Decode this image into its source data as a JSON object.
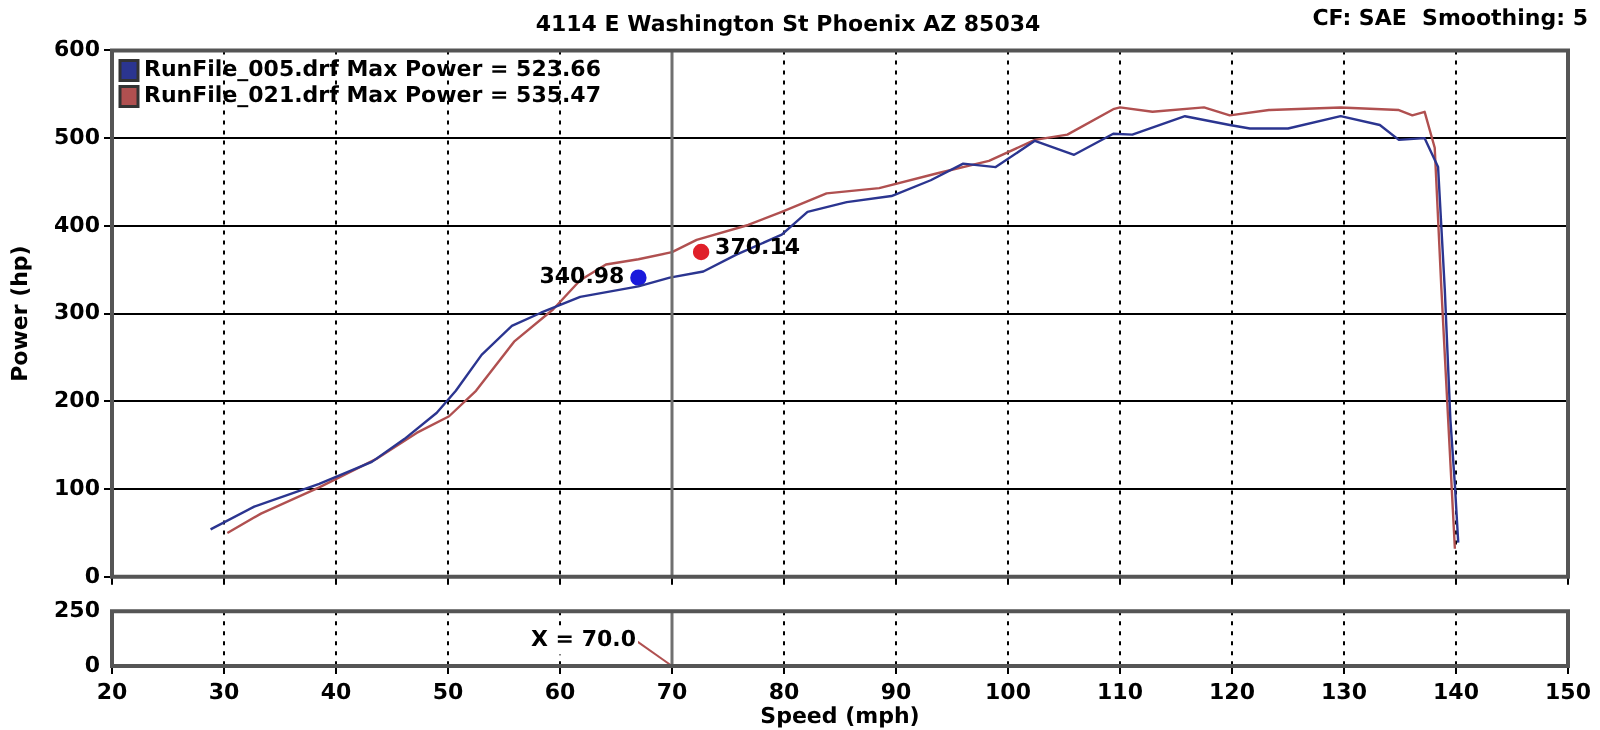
{
  "chart_data": [
    {
      "type": "line",
      "title": "4114 E Washington St Phoenix AZ 85034",
      "ylabel": "Power (hp)",
      "xlim": [
        20,
        150
      ],
      "xticks": [
        20,
        30,
        40,
        50,
        60,
        70,
        80,
        90,
        100,
        110,
        120,
        130,
        140,
        150
      ],
      "ylim": [
        0,
        600
      ],
      "yticks": [
        0,
        100,
        200,
        300,
        400,
        500,
        600
      ],
      "grid": true,
      "legend": "top left",
      "tick_labels": "y",
      "line_style": "solid",
      "annotations": [
        "CF: SAE  Smoothing: 5"
      ],
      "ref_lines": [
        {
          "axis": "x",
          "value": 70,
          "color": "#707070"
        }
      ],
      "series": [
        {
          "name": "RunFile_005.drf Max Power = 523.66",
          "color": "#2b3590",
          "x": [
            28.8,
            32.7,
            38.5,
            43.2,
            46.1,
            49,
            50.7,
            53,
            55.7,
            58.3,
            61.8,
            67,
            69.8,
            72.8,
            75.7,
            79.8,
            82.1,
            85.6,
            89.6,
            93.1,
            96,
            98.9,
            102.4,
            105.9,
            109.4,
            111.1,
            115.8,
            119.8,
            121.6,
            125,
            129.7,
            133.2,
            134.9,
            137.2,
            138.4,
            139,
            139.5,
            139.9,
            140.2
          ],
          "values": [
            54,
            80,
            106,
            131,
            157,
            187,
            212,
            253,
            286,
            301,
            319,
            331,
            341,
            348,
            367,
            390,
            416,
            427,
            434,
            452,
            471,
            467,
            497,
            481,
            505,
            504,
            525,
            515,
            511,
            511,
            525,
            515,
            498,
            500,
            467,
            327,
            179,
            105,
            39
          ]
        },
        {
          "name": "RunFile_021.drf Max Power = 535.47",
          "color": "#b05050",
          "x": [
            30.3,
            33.3,
            38.5,
            43.7,
            47.2,
            50.1,
            52.5,
            55.9,
            59.4,
            61.8,
            64.1,
            67,
            70,
            72.2,
            76.8,
            79.8,
            83.8,
            88.5,
            93.7,
            98.3,
            102.4,
            105.3,
            109.4,
            110,
            112.9,
            117.5,
            119.8,
            123.3,
            129.7,
            134.9,
            136.1,
            137.2,
            138.1,
            138.7,
            139.3,
            139.9
          ],
          "values": [
            50,
            72,
            102,
            135,
            164,
            183,
            212,
            268,
            305,
            338,
            356,
            362,
            370,
            384,
            401,
            416,
            437,
            443,
            460,
            474,
            498,
            504,
            533,
            535,
            530,
            535,
            526,
            532,
            535,
            532,
            526,
            530,
            489,
            327,
            179,
            32
          ]
        },
        {
          "type": "scatter",
          "marker": "circle",
          "color": "#1a1adc",
          "x": [
            67
          ],
          "values": [
            340.98
          ],
          "value_labels": [
            "340.98"
          ]
        },
        {
          "type": "scatter",
          "marker": "circle",
          "color": "#e0202a",
          "x": [
            72.6
          ],
          "values": [
            370.14
          ],
          "value_labels": [
            "370.14"
          ]
        }
      ]
    },
    {
      "type": "line",
      "xlabel": "Speed (mph)",
      "xlim": [
        20,
        150
      ],
      "xticks": [
        20,
        30,
        40,
        50,
        60,
        70,
        80,
        90,
        100,
        110,
        120,
        130,
        140,
        150
      ],
      "ylim": [
        0,
        250
      ],
      "yticks": [
        0,
        250
      ],
      "grid": "x",
      "ref_lines": [
        {
          "axis": "x",
          "value": 70,
          "label": "X = 70.0",
          "color": "#707070"
        }
      ]
    }
  ]
}
